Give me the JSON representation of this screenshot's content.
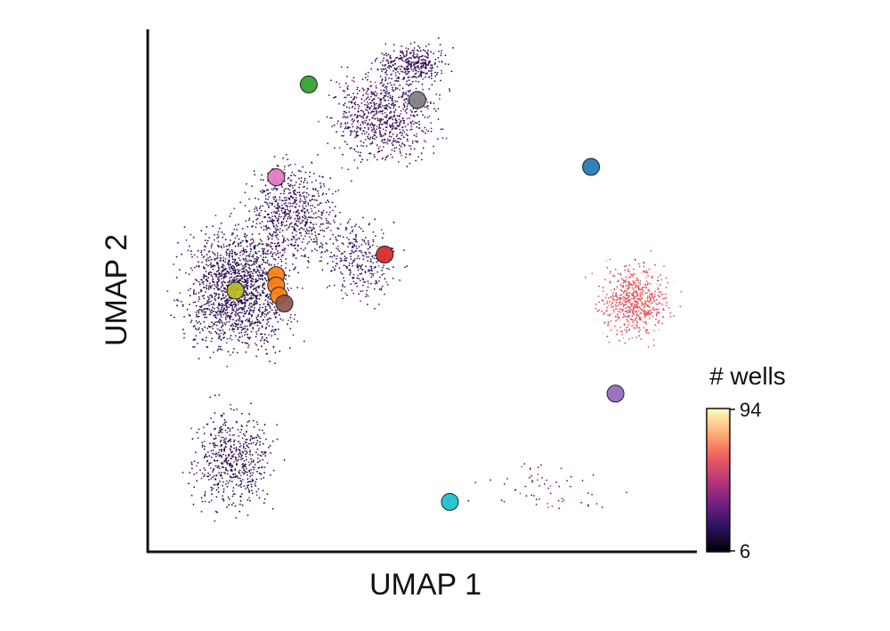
{
  "chart_data": {
    "type": "scatter",
    "xlabel": "UMAP 1",
    "ylabel": "UMAP 2",
    "xlim": [
      0,
      10
    ],
    "ylim": [
      0,
      10
    ],
    "ticks_shown": false,
    "grid": false,
    "colorbar": {
      "title": "# wells",
      "min": 6,
      "max": 94,
      "tick_labels": [
        "94",
        "6"
      ],
      "colormap": [
        "#000004",
        "#2c115f",
        "#721f81",
        "#b73779",
        "#f1605d",
        "#feb078",
        "#fcfdbf"
      ]
    },
    "background_clusters": [
      {
        "cx": 1.6,
        "cy": 5.0,
        "sx": 0.9,
        "sy": 1.1,
        "n": 1600,
        "level": 0.08
      },
      {
        "cx": 2.6,
        "cy": 6.5,
        "sx": 0.8,
        "sy": 0.9,
        "n": 700,
        "level": 0.1
      },
      {
        "cx": 4.3,
        "cy": 8.4,
        "sx": 0.9,
        "sy": 0.8,
        "n": 800,
        "level": 0.12
      },
      {
        "cx": 4.8,
        "cy": 9.4,
        "sx": 0.6,
        "sy": 0.35,
        "n": 350,
        "level": 0.1
      },
      {
        "cx": 3.9,
        "cy": 5.6,
        "sx": 0.6,
        "sy": 0.8,
        "n": 300,
        "level": 0.12
      },
      {
        "cx": 1.5,
        "cy": 1.7,
        "sx": 0.7,
        "sy": 0.9,
        "n": 550,
        "level": 0.06
      },
      {
        "cx": 8.9,
        "cy": 4.8,
        "sx": 0.6,
        "sy": 0.65,
        "n": 700,
        "level": 0.55
      },
      {
        "cx": 7.2,
        "cy": 1.2,
        "sx": 1.1,
        "sy": 0.45,
        "n": 60,
        "level": 0.2
      }
    ],
    "series": [
      {
        "color": "#2ca02c",
        "points": [
          [
            2.9,
            9.0
          ]
        ]
      },
      {
        "color": "#7f7f7f",
        "points": [
          [
            4.9,
            8.7
          ]
        ]
      },
      {
        "color": "#1f77b4",
        "points": [
          [
            8.1,
            7.4
          ]
        ]
      },
      {
        "color": "#e377c2",
        "points": [
          [
            2.3,
            7.2
          ]
        ]
      },
      {
        "color": "#d62728",
        "points": [
          [
            4.3,
            5.7
          ]
        ]
      },
      {
        "color": "#ff7f0e",
        "points": [
          [
            2.3,
            5.3
          ],
          [
            2.3,
            5.1
          ],
          [
            2.35,
            4.9
          ]
        ]
      },
      {
        "color": "#bcbd22",
        "points": [
          [
            1.55,
            5.0
          ]
        ]
      },
      {
        "color": "#8c564b",
        "points": [
          [
            2.45,
            4.75
          ]
        ]
      },
      {
        "color": "#9467bd",
        "points": [
          [
            8.55,
            3.0
          ]
        ]
      },
      {
        "color": "#17becf",
        "points": [
          [
            5.5,
            0.9
          ]
        ]
      }
    ]
  }
}
